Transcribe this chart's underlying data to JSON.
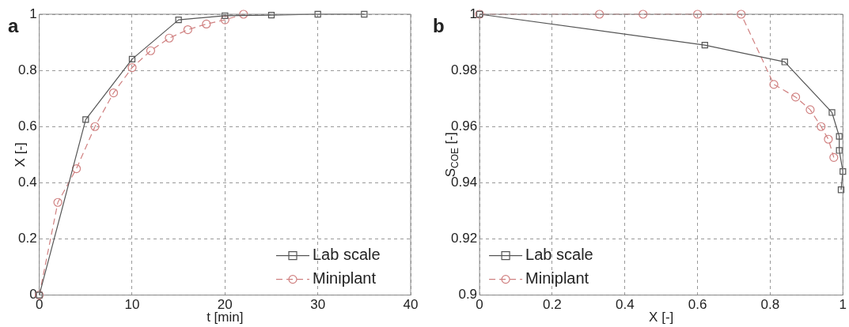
{
  "chart_data": [
    {
      "type": "line",
      "title": "a",
      "xlabel": "t [min]",
      "ylabel": "X [-]",
      "xlim": [
        0,
        40
      ],
      "xticks": [
        0,
        10,
        20,
        30,
        40
      ],
      "ylim": [
        0,
        1
      ],
      "yticks": [
        0,
        0.2,
        0.4,
        0.6,
        0.8,
        1
      ],
      "grid": true,
      "legend": "bottom right",
      "series": [
        {
          "name": "Lab scale",
          "color": "#555555",
          "marker": "square",
          "line_style": "solid",
          "x": [
            0,
            5,
            10,
            15,
            20,
            25,
            30,
            35
          ],
          "values": [
            0,
            0.625,
            0.84,
            0.98,
            0.995,
            0.997,
            1,
            1
          ]
        },
        {
          "name": "Miniplant",
          "color": "#d08080",
          "marker": "circle",
          "line_style": "dashed",
          "x": [
            0,
            2,
            4,
            6,
            8,
            10,
            12,
            14,
            16,
            18,
            20,
            22
          ],
          "values": [
            0,
            0.33,
            0.45,
            0.6,
            0.72,
            0.81,
            0.87,
            0.915,
            0.945,
            0.965,
            0.98,
            1
          ]
        }
      ]
    },
    {
      "type": "line",
      "title": "b",
      "xlabel": "X [-]",
      "ylabel": "S$_{COE}$ [-]",
      "xlim": [
        0,
        1
      ],
      "xticks": [
        0,
        0.2,
        0.4,
        0.6,
        0.8,
        1
      ],
      "ylim": [
        0.9,
        1
      ],
      "yticks": [
        0.9,
        0.92,
        0.94,
        0.96,
        0.98,
        1
      ],
      "grid": true,
      "legend": "bottom left",
      "series": [
        {
          "name": "Lab scale",
          "color": "#555555",
          "marker": "square",
          "line_style": "solid",
          "x": [
            0,
            0.62,
            0.84,
            0.97,
            0.99,
            0.99,
            1,
            0.995
          ],
          "values": [
            1,
            0.989,
            0.983,
            0.965,
            0.9565,
            0.9515,
            0.944,
            0.9375
          ]
        },
        {
          "name": "Miniplant",
          "color": "#d08080",
          "marker": "circle",
          "line_style": "dashed",
          "x": [
            0,
            0.33,
            0.45,
            0.6,
            0.72,
            0.81,
            0.87,
            0.91,
            0.94,
            0.96,
            0.975
          ],
          "values": [
            1,
            1,
            1,
            1,
            1,
            0.975,
            0.9705,
            0.966,
            0.96,
            0.9555,
            0.949
          ]
        }
      ]
    }
  ]
}
